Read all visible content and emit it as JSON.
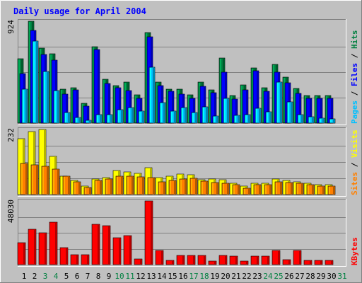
{
  "chart_data": [
    {
      "type": "bar",
      "title": "Daily usage for April 2004",
      "categories": [
        "1",
        "2",
        "3",
        "4",
        "5",
        "6",
        "7",
        "8",
        "9",
        "10",
        "11",
        "12",
        "13",
        "14",
        "15",
        "16",
        "17",
        "18",
        "19",
        "20",
        "21",
        "22",
        "23",
        "24",
        "25",
        "26",
        "27",
        "28",
        "29",
        "30",
        "31"
      ],
      "weekend_days": [
        "3",
        "4",
        "10",
        "11",
        "17",
        "18",
        "24",
        "25",
        "31"
      ],
      "max_label": "924",
      "legend": [
        "Pages",
        "Files",
        "Hits"
      ],
      "legend_separator": "/",
      "series": [
        {
          "name": "Hits",
          "color": "#008040",
          "values": [
            585,
            924,
            680,
            630,
            310,
            320,
            180,
            690,
            400,
            340,
            375,
            255,
            820,
            370,
            310,
            305,
            255,
            370,
            300,
            590,
            250,
            345,
            500,
            320,
            535,
            420,
            315,
            250,
            250,
            250,
            0
          ]
        },
        {
          "name": "Files",
          "color": "#0000ff",
          "values": [
            450,
            840,
            620,
            570,
            265,
            300,
            155,
            670,
            360,
            320,
            295,
            225,
            780,
            340,
            290,
            265,
            225,
            335,
            275,
            460,
            215,
            300,
            475,
            290,
            460,
            365,
            270,
            225,
            225,
            225,
            0
          ]
        },
        {
          "name": "Pages",
          "color": "#00c0ff",
          "values": [
            310,
            745,
            470,
            295,
            95,
            50,
            25,
            80,
            80,
            120,
            140,
            110,
            510,
            185,
            110,
            140,
            95,
            150,
            65,
            225,
            70,
            80,
            135,
            100,
            375,
            190,
            75,
            55,
            45,
            40,
            0
          ]
        }
      ]
    },
    {
      "type": "bar",
      "max_label": "232",
      "legend": [
        "Sites",
        "Visits"
      ],
      "legend_separator": "/",
      "series": [
        {
          "name": "Visits",
          "color": "#ffff00",
          "values": [
            200,
            225,
            232,
            135,
            65,
            50,
            30,
            55,
            60,
            85,
            80,
            75,
            95,
            60,
            65,
            73,
            70,
            53,
            55,
            53,
            40,
            30,
            40,
            40,
            55,
            50,
            45,
            40,
            35,
            35,
            0
          ]
        },
        {
          "name": "Sites",
          "color": "#ff8000",
          "values": [
            110,
            105,
            100,
            90,
            65,
            45,
            25,
            50,
            55,
            65,
            65,
            63,
            60,
            45,
            50,
            55,
            58,
            48,
            43,
            40,
            35,
            23,
            35,
            35,
            45,
            43,
            40,
            35,
            30,
            30,
            0
          ]
        }
      ]
    },
    {
      "type": "bar",
      "max_label": "48030",
      "legend": [
        "KBytes"
      ],
      "series": [
        {
          "name": "KBytes",
          "color": "#ff0000",
          "values": [
            16300,
            26500,
            24100,
            31900,
            12800,
            7500,
            7500,
            30300,
            29300,
            20500,
            21700,
            4300,
            48030,
            10800,
            3000,
            7200,
            7200,
            7200,
            2800,
            7200,
            6200,
            2800,
            6200,
            6200,
            10800,
            3800,
            10800,
            3200,
            3200,
            3200,
            0
          ]
        }
      ]
    }
  ]
}
